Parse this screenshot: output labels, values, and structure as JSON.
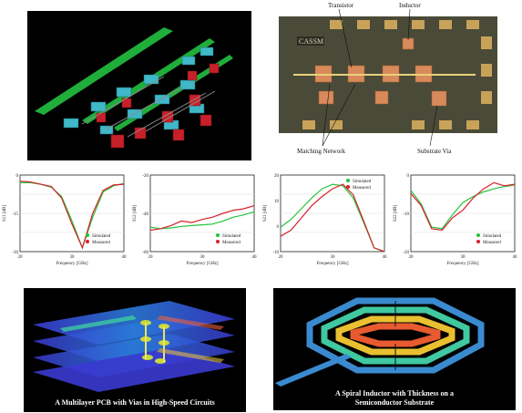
{
  "layout_panel": {},
  "chip_photo": {
    "chip_label": "CASSM",
    "callouts": {
      "transistor": "Transistor",
      "inductor": "Inductor",
      "matching_network": "Matching Network",
      "substrate_via": "Substrate Via"
    }
  },
  "plots": [
    {
      "ylabel": "S11 [dB]",
      "xlabel": "Frequency [GHz]",
      "x_ticks": [
        "20",
        "30",
        "40"
      ],
      "y_ticks": [
        "0",
        "-15",
        "-30"
      ],
      "legend": [
        "Simulated",
        "Measured"
      ]
    },
    {
      "ylabel": "S12 [dB]",
      "xlabel": "Frequency [GHz]",
      "x_ticks": [
        "20",
        "30",
        "40"
      ],
      "y_ticks": [
        "-20",
        "-40",
        "-60"
      ],
      "legend": [
        "Simulated",
        "Measured"
      ]
    },
    {
      "ylabel": "S21 [dB]",
      "xlabel": "Frequency [GHz]",
      "x_ticks": [
        "20",
        "30",
        "40"
      ],
      "y_ticks": [
        "20",
        "10",
        "0",
        "-10"
      ],
      "legend": [
        "Simulated",
        "Measured"
      ]
    },
    {
      "ylabel": "S22 [dB]",
      "xlabel": "Frequency [GHz]",
      "x_ticks": [
        "20",
        "30",
        "40"
      ],
      "y_ticks": [
        "0",
        "-10",
        "-20"
      ],
      "legend": [
        "Simulated",
        "Measured"
      ]
    }
  ],
  "series_colors": {
    "simulated": "#22c43a",
    "measured": "#d8222a"
  },
  "captions": {
    "pcb": "A Multilayer PCB with Vias in High-Speed Circuits",
    "inductor_line1": "A Spiral Inductor with Thickness on a",
    "inductor_line2": "Semiconductor Substrate"
  }
}
